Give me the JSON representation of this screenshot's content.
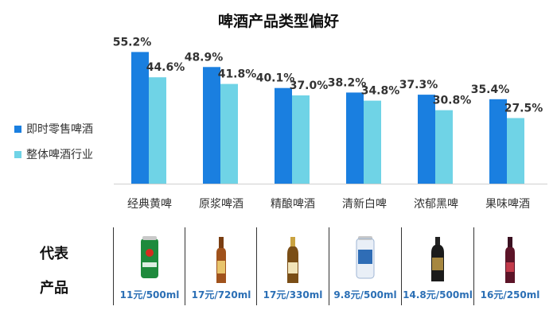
{
  "chart_data": {
    "type": "bar",
    "title": "啤酒产品类型偏好",
    "categories": [
      "经典黄啤",
      "原浆啤酒",
      "精酿啤酒",
      "清新白啤",
      "浓郁黑啤",
      "果味啤酒"
    ],
    "series": [
      {
        "name": "即时零售啤酒",
        "values": [
          55.2,
          48.9,
          40.1,
          38.2,
          37.3,
          35.4
        ],
        "labels": [
          "55.2%",
          "48.9%",
          "40.1%",
          "38.2%",
          "37.3%",
          "35.4%"
        ],
        "color": "#1a7fe0"
      },
      {
        "name": "整体啤酒行业",
        "values": [
          44.6,
          41.8,
          37.0,
          34.8,
          30.8,
          27.5
        ],
        "labels": [
          "44.6%",
          "41.8%",
          "37.0%",
          "34.8%",
          "30.8%",
          "27.5%"
        ],
        "color": "#6fd3e6"
      }
    ],
    "ylim": [
      0,
      60
    ],
    "grid": false,
    "legend": "left"
  },
  "products": {
    "label_top": "代表",
    "label_bottom": "产品",
    "prices": [
      "11元/500ml",
      "17元/720ml",
      "17元/330ml",
      "9.8元/500ml",
      "14.8元/500ml",
      "16元/250ml"
    ],
    "icons": [
      "green-beer-can-icon",
      "amber-beer-bottle-icon",
      "craft-beer-bottle-icon",
      "white-beer-can-icon",
      "black-beer-bottle-icon",
      "fruit-beer-bottle-icon"
    ]
  }
}
